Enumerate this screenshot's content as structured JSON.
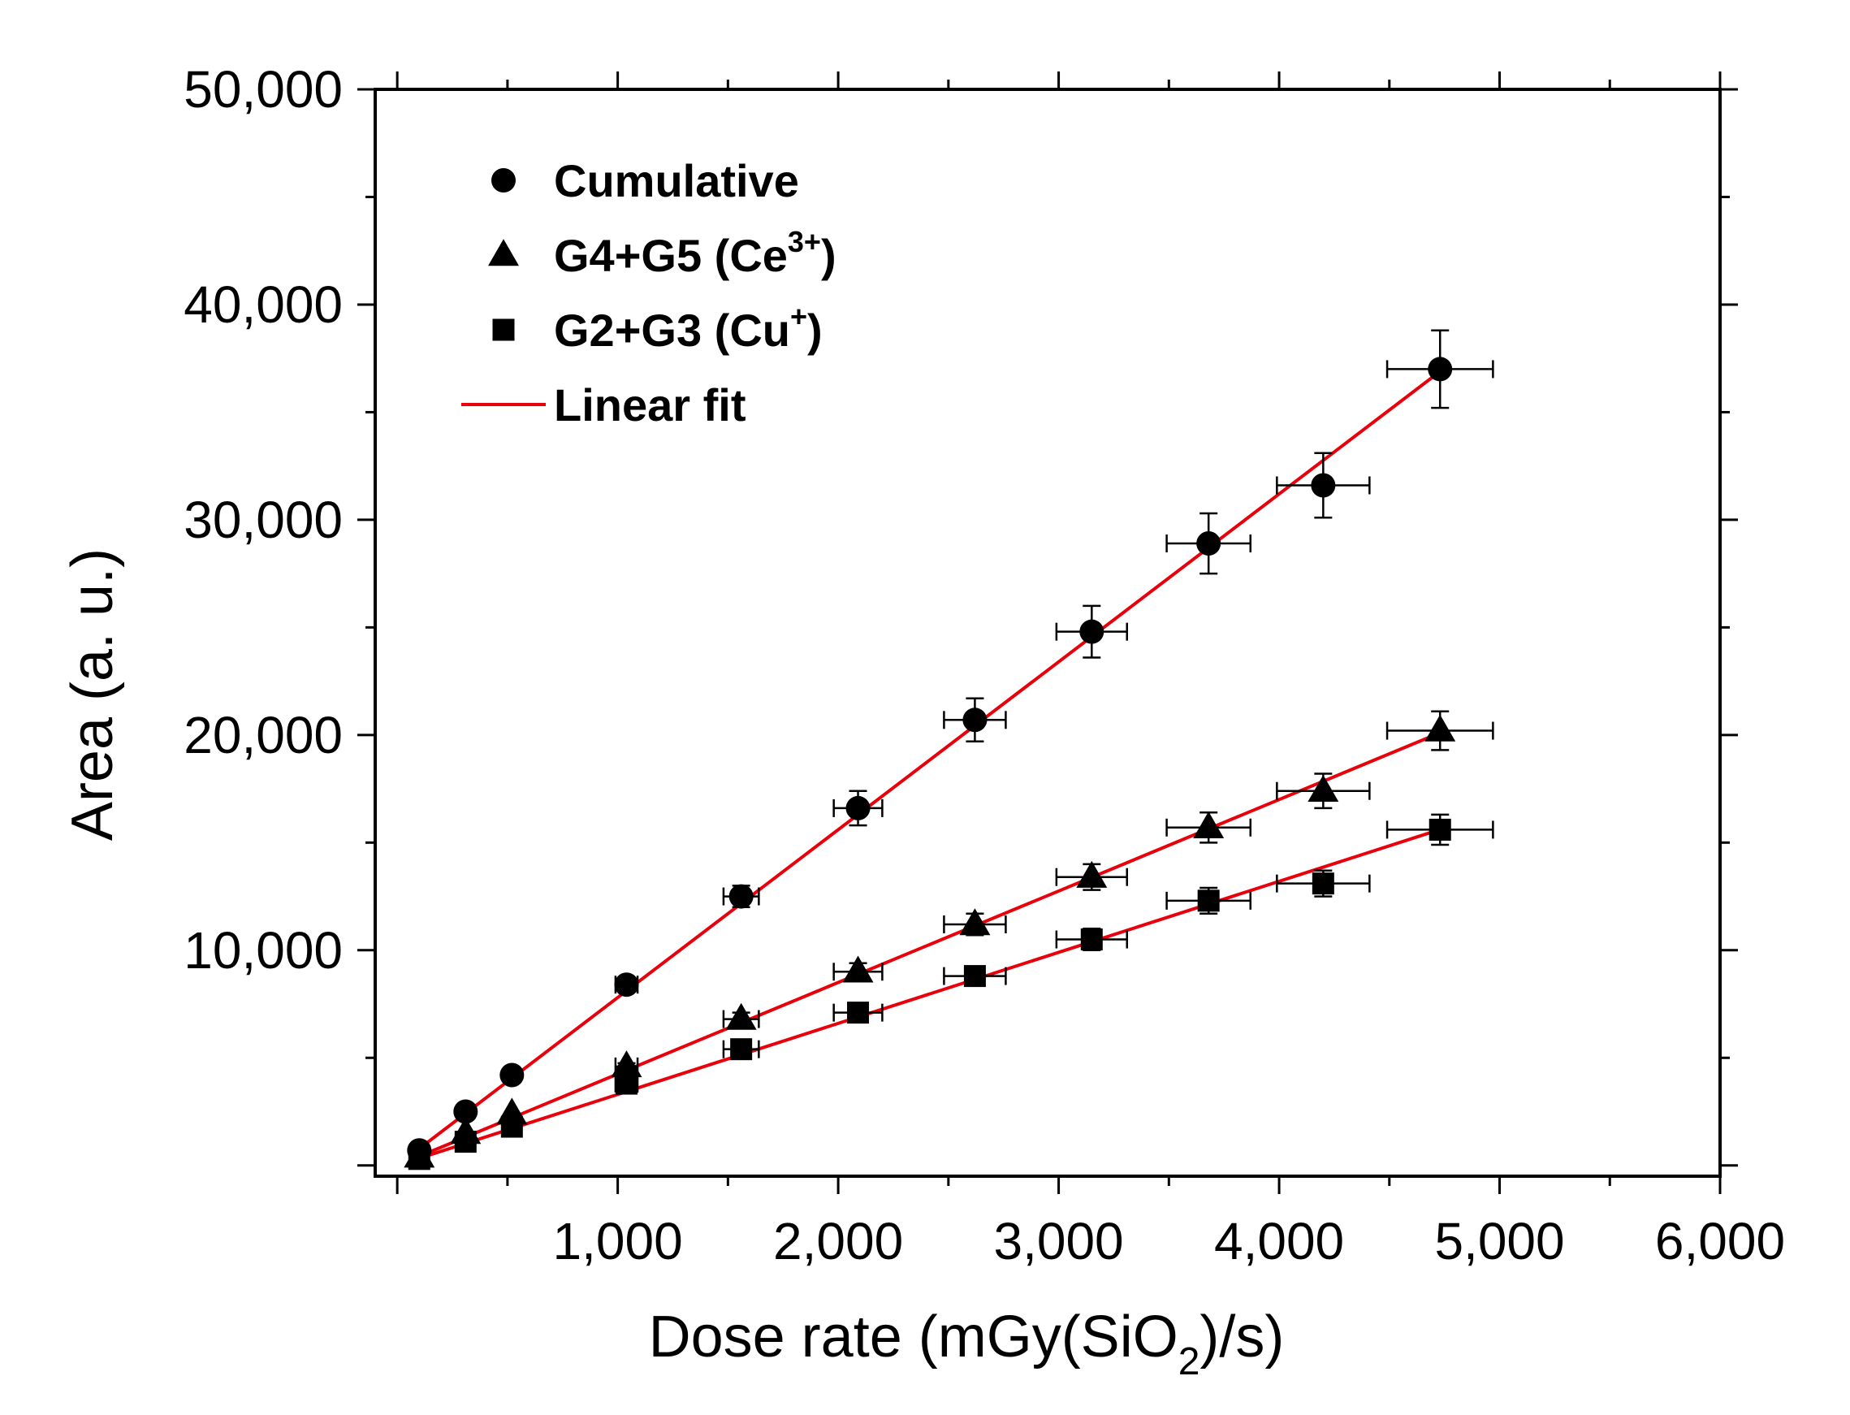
{
  "chart_data": {
    "type": "scatter",
    "title": "",
    "xlabel": "Dose rate (mGy(SiO₂)/s)",
    "xlabel_parts": {
      "pre": "Dose rate (mGy(SiO",
      "sub": "2",
      "post": ")/s)"
    },
    "ylabel": "Area (a. u.)",
    "xlim": [
      -100,
      6000
    ],
    "ylim": [
      -500,
      50000
    ],
    "x_ticks": [
      1000,
      2000,
      3000,
      4000,
      5000,
      6000
    ],
    "x_tick_labels": [
      "1,000",
      "2,000",
      "3,000",
      "4,000",
      "5,000",
      "6,000"
    ],
    "y_ticks": [
      10000,
      20000,
      30000,
      40000,
      50000
    ],
    "y_tick_labels": [
      "10,000",
      "20,000",
      "30,000",
      "40,000",
      "50,000"
    ],
    "grid": false,
    "legend_position": "top-left",
    "series": [
      {
        "name": "Cumulative",
        "marker": "circle",
        "x": [
          100,
          310,
          520,
          1040,
          1560,
          2090,
          2620,
          3150,
          3680,
          4200,
          4730
        ],
        "y": [
          700,
          2500,
          4200,
          8400,
          12500,
          16600,
          20700,
          24800,
          28900,
          31600,
          37000
        ],
        "x_err": [
          0,
          0,
          0,
          50,
          80,
          110,
          140,
          160,
          190,
          210,
          240
        ],
        "y_err": [
          0,
          0,
          0,
          200,
          500,
          800,
          1000,
          1200,
          1400,
          1500,
          1800
        ]
      },
      {
        "name": "G4+G5 (Ce³⁺)",
        "label_parts": {
          "pre": "G4+G5 (Ce",
          "sup": "3+",
          "post": ")"
        },
        "marker": "triangle",
        "x": [
          100,
          310,
          520,
          1040,
          1560,
          2090,
          2620,
          3150,
          3680,
          4200,
          4730
        ],
        "y": [
          400,
          1500,
          2400,
          4600,
          6800,
          9000,
          11200,
          13400,
          15700,
          17400,
          20200
        ],
        "x_err": [
          0,
          0,
          0,
          50,
          80,
          110,
          140,
          160,
          190,
          210,
          240
        ],
        "y_err": [
          0,
          0,
          0,
          150,
          300,
          400,
          500,
          600,
          700,
          800,
          900
        ]
      },
      {
        "name": "G2+G3 (Cu⁺)",
        "label_parts": {
          "pre": "G2+G3 (Cu",
          "sup": "+",
          "post": ")"
        },
        "marker": "square",
        "x": [
          100,
          310,
          520,
          1040,
          1560,
          2090,
          2620,
          3150,
          3680,
          4200,
          4730
        ],
        "y": [
          300,
          1100,
          1800,
          3800,
          5400,
          7100,
          8800,
          10500,
          12300,
          13100,
          15600
        ],
        "x_err": [
          0,
          0,
          0,
          50,
          80,
          110,
          140,
          160,
          190,
          210,
          240
        ],
        "y_err": [
          0,
          0,
          0,
          100,
          300,
          300,
          400,
          500,
          600,
          600,
          700
        ]
      }
    ],
    "fits": [
      {
        "name": "Linear fit",
        "for": "Cumulative",
        "slope": 7.8,
        "intercept": 0,
        "x_range": [
          100,
          4730
        ],
        "color": "#e8000b"
      },
      {
        "name": "Linear fit",
        "for": "G4+G5 (Ce³⁺)",
        "slope": 4.25,
        "intercept": 0,
        "x_range": [
          100,
          4730
        ],
        "color": "#e8000b"
      },
      {
        "name": "Linear fit",
        "for": "G2+G3 (Cu⁺)",
        "slope": 3.3,
        "intercept": 0,
        "x_range": [
          100,
          4730
        ],
        "color": "#e8000b"
      }
    ],
    "legend": [
      {
        "label": "Cumulative",
        "symbol": "circle"
      },
      {
        "label": "G4+G5 (Ce³⁺)",
        "symbol": "triangle"
      },
      {
        "label": "G2+G3 (Cu⁺)",
        "symbol": "square"
      },
      {
        "label": "Linear fit",
        "symbol": "line"
      }
    ],
    "colors": {
      "marker": "#000000",
      "fit": "#e8000b",
      "axis": "#000000"
    }
  }
}
